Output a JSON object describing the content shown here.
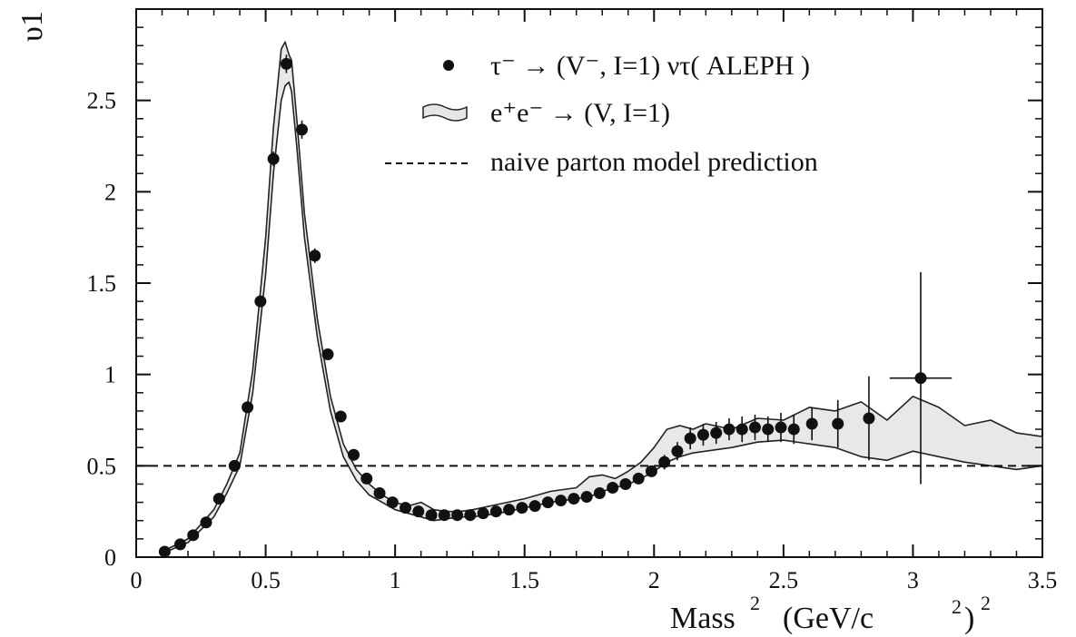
{
  "chart_data": {
    "type": "scatter",
    "ylabel": "υ1",
    "xlabel_base": "Mass",
    "xlabel_units": "(GeV/c",
    "xlim": [
      0,
      3.5
    ],
    "ylim": [
      0,
      3.0
    ],
    "xticks": [
      "0",
      "0.5",
      "1",
      "1.5",
      "2",
      "2.5",
      "3",
      "3.5"
    ],
    "yticks": [
      "0",
      "0.5",
      "1",
      "1.5",
      "2",
      "2.5"
    ],
    "legend": {
      "position": "top-right",
      "entries": [
        {
          "label": "τ⁻ → (V⁻, I=1) ντ( ALEPH )",
          "marker": "filled-circle"
        },
        {
          "label": "e⁺e⁻ → (V, I=1)",
          "marker": "hatched-band"
        },
        {
          "label": "naive parton model prediction",
          "marker": "dashed-line"
        }
      ]
    },
    "series": [
      {
        "marker": "filled-circle",
        "x": [
          0.11,
          0.17,
          0.22,
          0.27,
          0.32,
          0.38,
          0.43,
          0.48,
          0.53,
          0.58,
          0.64,
          0.69,
          0.74,
          0.79,
          0.84,
          0.89,
          0.94,
          0.99,
          1.04,
          1.09,
          1.14,
          1.19,
          1.24,
          1.29,
          1.34,
          1.39,
          1.44,
          1.49,
          1.54,
          1.59,
          1.64,
          1.69,
          1.74,
          1.79,
          1.84,
          1.89,
          1.94,
          1.99,
          2.04,
          2.09,
          2.14,
          2.19,
          2.24,
          2.29,
          2.34,
          2.39,
          2.44,
          2.49,
          2.54,
          2.61,
          2.71,
          2.83,
          3.03
        ],
        "y": [
          0.03,
          0.07,
          0.12,
          0.19,
          0.32,
          0.5,
          0.82,
          1.4,
          2.18,
          2.7,
          2.34,
          1.65,
          1.11,
          0.77,
          0.56,
          0.43,
          0.35,
          0.3,
          0.27,
          0.25,
          0.23,
          0.23,
          0.23,
          0.23,
          0.24,
          0.25,
          0.26,
          0.27,
          0.28,
          0.3,
          0.31,
          0.32,
          0.33,
          0.35,
          0.38,
          0.4,
          0.43,
          0.47,
          0.52,
          0.58,
          0.65,
          0.67,
          0.68,
          0.7,
          0.7,
          0.71,
          0.7,
          0.71,
          0.7,
          0.73,
          0.73,
          0.76,
          0.98
        ],
        "yerr": [
          0.005,
          0.005,
          0.005,
          0.01,
          0.01,
          0.02,
          0.02,
          0.03,
          0.04,
          0.05,
          0.05,
          0.04,
          0.03,
          0.02,
          0.02,
          0.01,
          0.01,
          0.01,
          0.01,
          0.01,
          0.01,
          0.01,
          0.01,
          0.01,
          0.01,
          0.01,
          0.01,
          0.01,
          0.01,
          0.01,
          0.01,
          0.01,
          0.02,
          0.02,
          0.02,
          0.02,
          0.03,
          0.03,
          0.04,
          0.05,
          0.06,
          0.06,
          0.06,
          0.06,
          0.07,
          0.07,
          0.07,
          0.08,
          0.08,
          0.09,
          0.13,
          0.23,
          0.58
        ],
        "xerr": [
          0,
          0,
          0,
          0,
          0,
          0,
          0,
          0,
          0,
          0,
          0,
          0,
          0,
          0,
          0,
          0,
          0,
          0,
          0,
          0,
          0,
          0,
          0,
          0,
          0,
          0,
          0,
          0,
          0,
          0,
          0,
          0,
          0,
          0,
          0,
          0,
          0,
          0,
          0,
          0,
          0,
          0,
          0,
          0,
          0,
          0,
          0,
          0,
          0,
          0,
          0,
          0,
          0.12
        ]
      },
      {
        "marker": "hatched-band",
        "x": [
          0.1,
          0.2,
          0.3,
          0.35,
          0.4,
          0.45,
          0.5,
          0.53,
          0.56,
          0.575,
          0.59,
          0.6,
          0.62,
          0.65,
          0.7,
          0.75,
          0.8,
          0.85,
          0.9,
          0.95,
          1.0,
          1.05,
          1.1,
          1.15,
          1.2,
          1.25,
          1.3,
          1.4,
          1.5,
          1.6,
          1.7,
          1.75,
          1.8,
          1.85,
          1.9,
          1.95,
          2.0,
          2.05,
          2.1,
          2.15,
          2.2,
          2.3,
          2.4,
          2.5,
          2.6,
          2.7,
          2.8,
          2.9,
          3.0,
          3.1,
          3.2,
          3.3,
          3.4,
          3.5
        ],
        "y_low": [
          0.02,
          0.08,
          0.22,
          0.35,
          0.5,
          0.9,
          1.55,
          2.1,
          2.5,
          2.58,
          2.6,
          2.55,
          2.25,
          1.75,
          1.2,
          0.8,
          0.55,
          0.42,
          0.34,
          0.3,
          0.26,
          0.24,
          0.22,
          0.2,
          0.21,
          0.22,
          0.22,
          0.24,
          0.27,
          0.3,
          0.32,
          0.33,
          0.36,
          0.38,
          0.4,
          0.43,
          0.47,
          0.52,
          0.55,
          0.57,
          0.58,
          0.6,
          0.63,
          0.64,
          0.62,
          0.6,
          0.55,
          0.53,
          0.58,
          0.55,
          0.52,
          0.5,
          0.48,
          0.5
        ],
        "y_high": [
          0.03,
          0.1,
          0.26,
          0.4,
          0.57,
          1.02,
          1.75,
          2.35,
          2.78,
          2.82,
          2.75,
          2.72,
          2.4,
          1.88,
          1.3,
          0.88,
          0.62,
          0.48,
          0.4,
          0.34,
          0.3,
          0.28,
          0.3,
          0.26,
          0.25,
          0.25,
          0.26,
          0.29,
          0.32,
          0.36,
          0.38,
          0.44,
          0.45,
          0.43,
          0.47,
          0.52,
          0.6,
          0.7,
          0.72,
          0.7,
          0.73,
          0.7,
          0.76,
          0.75,
          0.82,
          0.8,
          0.85,
          0.75,
          0.88,
          0.82,
          0.72,
          0.75,
          0.68,
          0.66
        ]
      },
      {
        "marker": "dashed-line",
        "x": [
          0,
          3.5
        ],
        "y": [
          0.5,
          0.5
        ]
      }
    ]
  }
}
